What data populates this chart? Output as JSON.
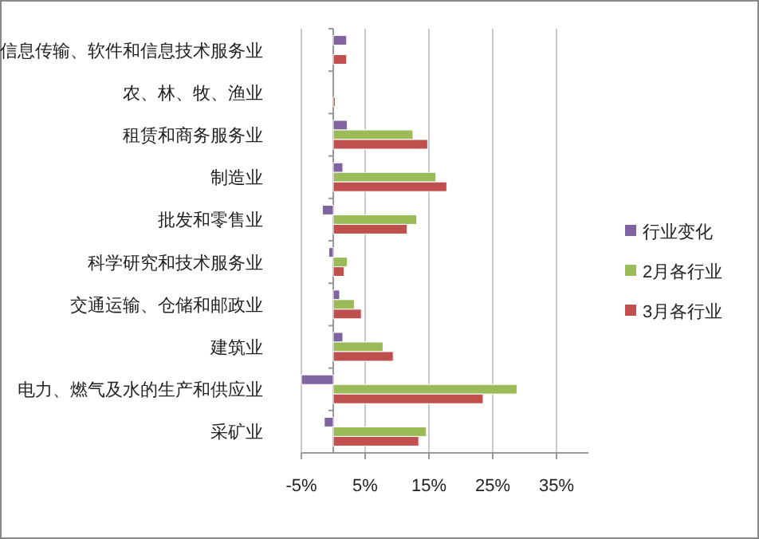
{
  "chart_data": {
    "type": "bar",
    "orientation": "horizontal",
    "categories": [
      "信息传输、软件和信息技术服务业",
      "农、林、牧、渔业",
      "租赁和商务服务业",
      "制造业",
      "批发和零售业",
      "科学研究和技术服务业",
      "交通运输、仓储和邮政业",
      "建筑业",
      "电力、燃气及水的生产和供应业",
      "采矿业"
    ],
    "series": [
      {
        "name": "行业变化",
        "color": "#8064a2",
        "values": [
          2.1,
          null,
          2.2,
          1.5,
          -1.7,
          -0.7,
          1.0,
          1.5,
          -5.0,
          -1.4
        ]
      },
      {
        "name": "2月各行业",
        "color": "#9bbb59",
        "values": [
          null,
          null,
          12.5,
          16.1,
          13.1,
          2.2,
          3.3,
          7.8,
          28.8,
          14.6
        ]
      },
      {
        "name": "3月各行业",
        "color": "#c0504d",
        "values": [
          2.1,
          0.3,
          14.8,
          17.8,
          11.6,
          1.7,
          4.4,
          9.4,
          23.5,
          13.4
        ]
      }
    ],
    "xlim": [
      -5,
      40
    ],
    "xticks": [
      {
        "value": -5,
        "label": "-5%"
      },
      {
        "value": 5,
        "label": "5%"
      },
      {
        "value": 15,
        "label": "15%"
      },
      {
        "value": 25,
        "label": "25%"
      },
      {
        "value": 35,
        "label": "35%"
      }
    ],
    "grid": "x",
    "legend": "right"
  }
}
